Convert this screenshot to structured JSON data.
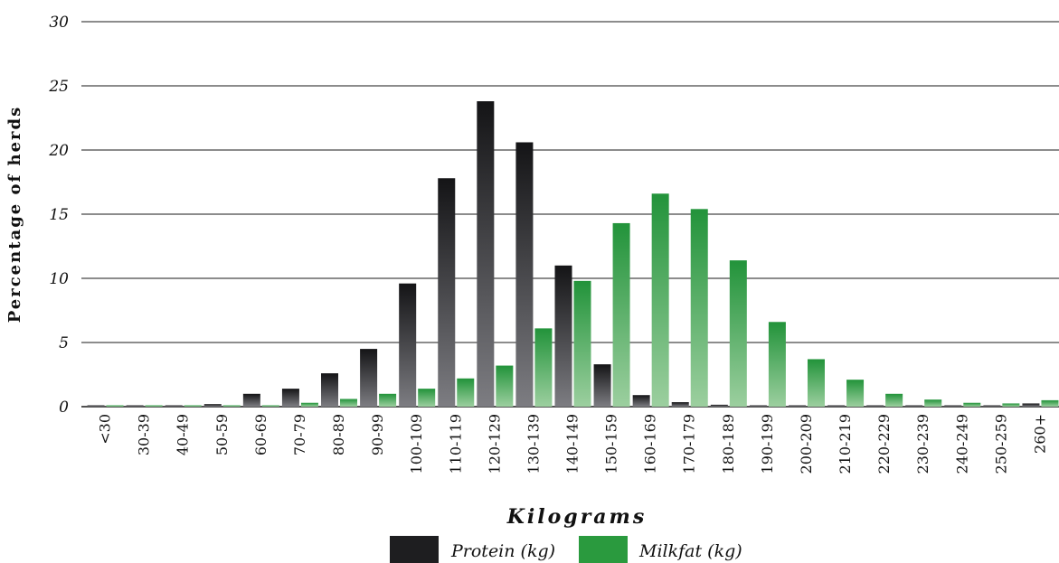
{
  "chart_data": {
    "type": "bar",
    "xlabel": "Kilograms",
    "ylabel": "Percentage of herds",
    "ylim": [
      0,
      30
    ],
    "yticks": [
      0,
      5,
      10,
      15,
      20,
      25,
      30
    ],
    "grid": true,
    "legend_position": "bottom-center",
    "categories": [
      "<30",
      "30-39",
      "40-49",
      "50-59",
      "60-69",
      "70-79",
      "80-89",
      "90-99",
      "100-109",
      "110-119",
      "120-129",
      "130-139",
      "140-149",
      "150-159",
      "160-169",
      "170-179",
      "180-189",
      "190-199",
      "200-209",
      "210-219",
      "220-229",
      "230-239",
      "240-249",
      "250-259",
      "260+"
    ],
    "series": [
      {
        "name": "Protein (kg)",
        "color": "#1e1e20",
        "values": [
          0.05,
          0.05,
          0.05,
          0.2,
          1.0,
          1.4,
          2.6,
          4.5,
          9.6,
          17.8,
          23.8,
          20.6,
          11.0,
          3.3,
          0.9,
          0.35,
          0.15,
          0.1,
          0.1,
          0.1,
          0.1,
          0.1,
          0.1,
          0.05,
          0.25
        ]
      },
      {
        "name": "Milkfat (kg)",
        "color": "#2a9a3e",
        "values": [
          0.05,
          0.05,
          0.05,
          0.05,
          0.05,
          0.3,
          0.6,
          1.0,
          1.4,
          2.2,
          3.2,
          6.1,
          9.8,
          14.3,
          16.6,
          15.4,
          11.4,
          6.6,
          3.7,
          2.1,
          1.0,
          0.55,
          0.3,
          0.25,
          0.5
        ]
      }
    ]
  }
}
